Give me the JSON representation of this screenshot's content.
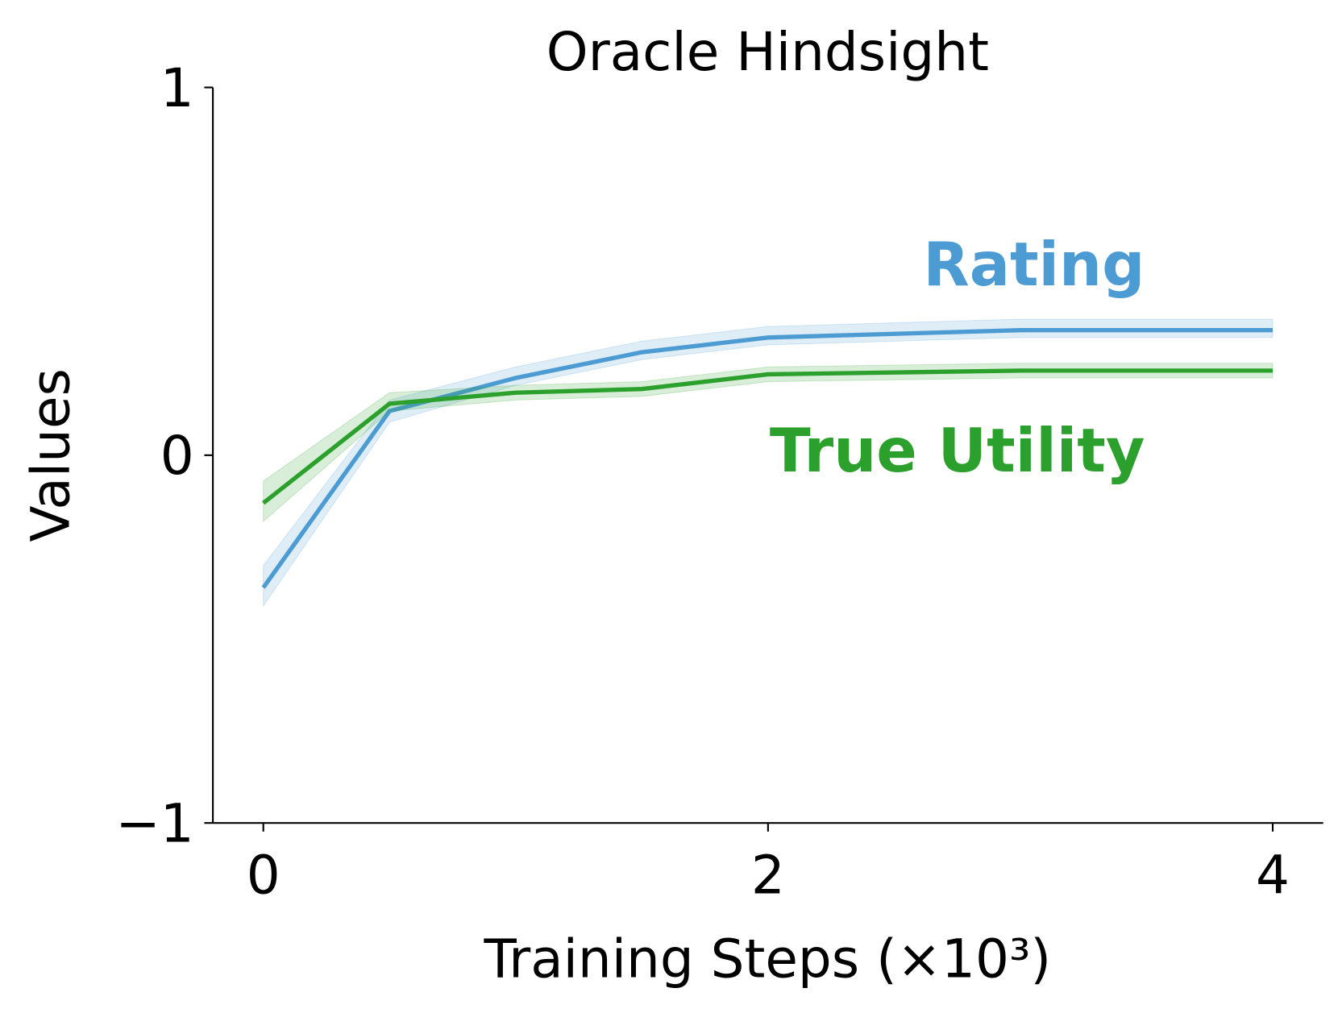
{
  "chart_data": {
    "type": "line",
    "title": "Oracle Hindsight",
    "x_label": "Training Steps (×10³)",
    "y_label": "Values",
    "x": [
      0,
      0.5,
      1,
      1.5,
      2,
      3,
      4
    ],
    "series": [
      {
        "name": "Rating",
        "color": "#4c9bd3",
        "values": [
          -0.36,
          0.12,
          0.21,
          0.28,
          0.32,
          0.34,
          0.34
        ],
        "lower": [
          -0.41,
          0.09,
          0.19,
          0.26,
          0.3,
          0.32,
          0.32
        ],
        "upper": [
          -0.3,
          0.15,
          0.24,
          0.31,
          0.35,
          0.37,
          0.37
        ]
      },
      {
        "name": "True Utility",
        "color": "#2ca02c",
        "values": [
          -0.13,
          0.14,
          0.17,
          0.18,
          0.22,
          0.23,
          0.23
        ],
        "lower": [
          -0.18,
          0.12,
          0.15,
          0.16,
          0.2,
          0.21,
          0.21
        ],
        "upper": [
          -0.07,
          0.17,
          0.19,
          0.2,
          0.24,
          0.25,
          0.25
        ]
      }
    ],
    "xlim": [
      -0.2,
      4.2
    ],
    "ylim": [
      -1,
      1
    ],
    "xticks": [
      0,
      2,
      4
    ],
    "yticks": [
      {
        "value": -1,
        "label": "−1"
      },
      0,
      1
    ]
  }
}
